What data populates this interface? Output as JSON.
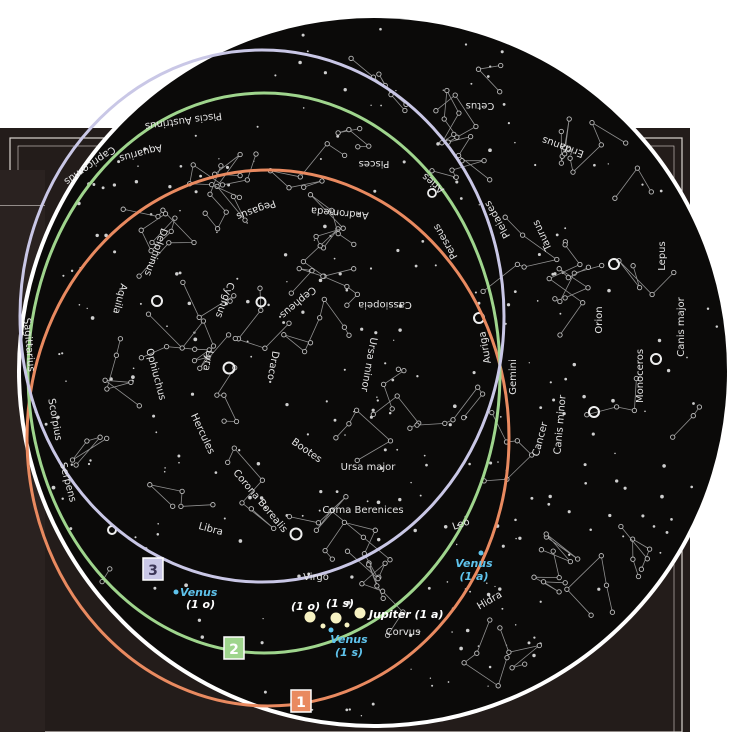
{
  "colors": {
    "sky": "#0b0a09",
    "frame": "#231c1a",
    "orbit_1": "#e98a60",
    "orbit_2": "#9fd58d",
    "orbit_3": "#c9c7e6",
    "venus": "#5fc3ec",
    "planet_dot": "#f7f2c2"
  },
  "constellations": {
    "cetus": "Cetus",
    "piscis_austrinus": "Piscis Austrinus",
    "capricornus": "Capricornus",
    "aquarius": "Aquarius",
    "pisces": "Pisces",
    "aries": "Aries",
    "eridanus": "Eridanus",
    "pegasus": "Pegasus",
    "andromeda": "Andromeda",
    "pleiades": "Pleiades",
    "taurus": "Taurus",
    "perseus": "Perseus",
    "lepus": "Lepus",
    "delphinus": "Delphinus",
    "aquila": "Aquila",
    "cygnus": "Cygnus",
    "cepheus": "Cepheus",
    "cassiopeia": "Cassiopeia",
    "auriga": "Auriga",
    "orion": "Orion",
    "canis_major": "Canis major",
    "lyra": "Lyra",
    "draco": "Draco",
    "ursa_minor": "Ursa minor",
    "ophiuchus": "Ophiuchus",
    "gemini": "Gemini",
    "monoceros": "Monoceros",
    "canis_minor": "Canis minor",
    "cancer": "Cancer",
    "hercules": "Hercules",
    "bootes": "Bootes",
    "ursa_major": "Ursa major",
    "serpens": "Serpens",
    "corona_borealis": "Corona Borealis",
    "coma_berenices": "Coma Berenices",
    "leo": "Leo",
    "libra": "Libra",
    "virgo": "Virgo",
    "corvus": "Corvus",
    "hidra": "Hidra",
    "scorpius": "Scorpius",
    "sagittarius": "Sagittarius"
  },
  "markers": {
    "m1": "1",
    "m2": "2",
    "m3": "3"
  },
  "planets": {
    "jupiter": "Jupiter (1 a)",
    "p_1o": "(1 o)",
    "p_1s": "(1 s)",
    "venus_1a_name": "Venus",
    "venus_1a_date": "(1 a)",
    "venus_1o_name": "Venus",
    "venus_1o_date": "(1 o)",
    "venus_1s_name": "Venus",
    "venus_1s_date": "(1 s)"
  }
}
